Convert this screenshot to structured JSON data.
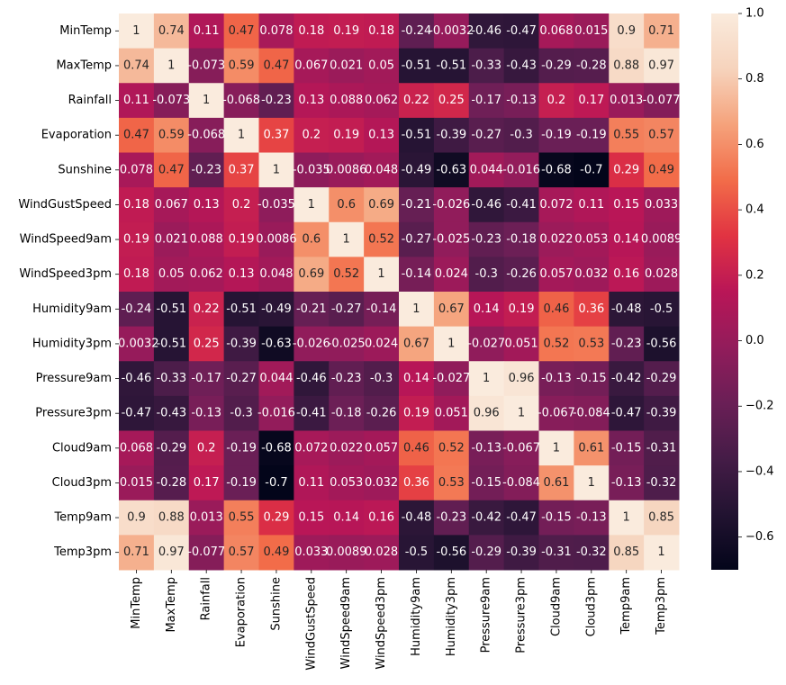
{
  "chart_data": {
    "type": "heatmap",
    "title": "",
    "xlabel": "",
    "ylabel": "",
    "row_labels": [
      "MinTemp",
      "MaxTemp",
      "Rainfall",
      "Evaporation",
      "Sunshine",
      "WindGustSpeed",
      "WindSpeed9am",
      "WindSpeed3pm",
      "Humidity9am",
      "Humidity3pm",
      "Pressure9am",
      "Pressure3pm",
      "Cloud9am",
      "Cloud3pm",
      "Temp9am",
      "Temp3pm"
    ],
    "col_labels": [
      "MinTemp",
      "MaxTemp",
      "Rainfall",
      "Evaporation",
      "Sunshine",
      "WindGustSpeed",
      "WindSpeed9am",
      "WindSpeed3pm",
      "Humidity9am",
      "Humidity3pm",
      "Pressure9am",
      "Pressure3pm",
      "Cloud9am",
      "Cloud3pm",
      "Temp9am",
      "Temp3pm"
    ],
    "values": [
      [
        1,
        0.74,
        0.11,
        0.47,
        0.078,
        0.18,
        0.19,
        0.18,
        -0.24,
        -0.0032,
        -0.46,
        -0.47,
        0.068,
        0.015,
        0.9,
        0.71
      ],
      [
        0.74,
        1,
        -0.073,
        0.59,
        0.47,
        0.067,
        0.021,
        0.05,
        -0.51,
        -0.51,
        -0.33,
        -0.43,
        -0.29,
        -0.28,
        0.88,
        0.97
      ],
      [
        0.11,
        -0.073,
        1,
        -0.068,
        -0.23,
        0.13,
        0.088,
        0.062,
        0.22,
        0.25,
        -0.17,
        -0.13,
        0.2,
        0.17,
        0.013,
        -0.077
      ],
      [
        0.47,
        0.59,
        -0.068,
        1,
        0.37,
        0.2,
        0.19,
        0.13,
        -0.51,
        -0.39,
        -0.27,
        -0.3,
        -0.19,
        -0.19,
        0.55,
        0.57
      ],
      [
        0.078,
        0.47,
        -0.23,
        0.37,
        1,
        -0.035,
        0.0086,
        0.048,
        -0.49,
        -0.63,
        0.044,
        -0.016,
        -0.68,
        -0.7,
        0.29,
        0.49
      ],
      [
        0.18,
        0.067,
        0.13,
        0.2,
        -0.035,
        1,
        0.6,
        0.69,
        -0.21,
        -0.026,
        -0.46,
        -0.41,
        0.072,
        0.11,
        0.15,
        0.033
      ],
      [
        0.19,
        0.021,
        0.088,
        0.19,
        0.0086,
        0.6,
        1,
        0.52,
        -0.27,
        -0.025,
        -0.23,
        -0.18,
        0.022,
        0.053,
        0.14,
        0.0089
      ],
      [
        0.18,
        0.05,
        0.062,
        0.13,
        0.048,
        0.69,
        0.52,
        1,
        -0.14,
        0.024,
        -0.3,
        -0.26,
        0.057,
        0.032,
        0.16,
        0.028
      ],
      [
        -0.24,
        -0.51,
        0.22,
        -0.51,
        -0.49,
        -0.21,
        -0.27,
        -0.14,
        1,
        0.67,
        0.14,
        0.19,
        0.46,
        0.36,
        -0.48,
        -0.5
      ],
      [
        -0.0032,
        -0.51,
        0.25,
        -0.39,
        -0.63,
        -0.026,
        -0.025,
        0.024,
        0.67,
        1,
        -0.027,
        0.051,
        0.52,
        0.53,
        -0.23,
        -0.56
      ],
      [
        -0.46,
        -0.33,
        -0.17,
        -0.27,
        0.044,
        -0.46,
        -0.23,
        -0.3,
        0.14,
        -0.027,
        1,
        0.96,
        -0.13,
        -0.15,
        -0.42,
        -0.29
      ],
      [
        -0.47,
        -0.43,
        -0.13,
        -0.3,
        -0.016,
        -0.41,
        -0.18,
        -0.26,
        0.19,
        0.051,
        0.96,
        1,
        -0.067,
        -0.084,
        -0.47,
        -0.39
      ],
      [
        0.068,
        -0.29,
        0.2,
        -0.19,
        -0.68,
        0.072,
        0.022,
        0.057,
        0.46,
        0.52,
        -0.13,
        -0.067,
        1,
        0.61,
        -0.15,
        -0.31
      ],
      [
        0.015,
        -0.28,
        0.17,
        -0.19,
        -0.7,
        0.11,
        0.053,
        0.032,
        0.36,
        0.53,
        -0.15,
        -0.084,
        0.61,
        1,
        -0.13,
        -0.32
      ],
      [
        0.9,
        0.88,
        0.013,
        0.55,
        0.29,
        0.15,
        0.14,
        0.16,
        -0.48,
        -0.23,
        -0.42,
        -0.47,
        -0.15,
        -0.13,
        1,
        0.85
      ],
      [
        0.71,
        0.97,
        -0.077,
        0.57,
        0.49,
        0.033,
        0.0089,
        0.028,
        -0.5,
        -0.56,
        -0.29,
        -0.39,
        -0.31,
        -0.32,
        0.85,
        1
      ]
    ],
    "value_labels": [
      [
        "1",
        "0.74",
        "0.11",
        "0.47",
        "0.078",
        "0.18",
        "0.19",
        "0.18",
        "-0.24",
        "-0.0032",
        "-0.46",
        "-0.47",
        "0.068",
        "0.015",
        "0.9",
        "0.71"
      ],
      [
        "0.74",
        "1",
        "-0.073",
        "0.59",
        "0.47",
        "0.067",
        "0.021",
        "0.05",
        "-0.51",
        "-0.51",
        "-0.33",
        "-0.43",
        "-0.29",
        "-0.28",
        "0.88",
        "0.97"
      ],
      [
        "0.11",
        "-0.073",
        "1",
        "-0.068",
        "-0.23",
        "0.13",
        "0.088",
        "0.062",
        "0.22",
        "0.25",
        "-0.17",
        "-0.13",
        "0.2",
        "0.17",
        "0.013",
        "-0.077"
      ],
      [
        "0.47",
        "0.59",
        "-0.068",
        "1",
        "0.37",
        "0.2",
        "0.19",
        "0.13",
        "-0.51",
        "-0.39",
        "-0.27",
        "-0.3",
        "-0.19",
        "-0.19",
        "0.55",
        "0.57"
      ],
      [
        "0.078",
        "0.47",
        "-0.23",
        "0.37",
        "1",
        "-0.035",
        "0.0086",
        "0.048",
        "-0.49",
        "-0.63",
        "0.044",
        "-0.016",
        "-0.68",
        "-0.7",
        "0.29",
        "0.49"
      ],
      [
        "0.18",
        "0.067",
        "0.13",
        "0.2",
        "-0.035",
        "1",
        "0.6",
        "0.69",
        "-0.21",
        "-0.026",
        "-0.46",
        "-0.41",
        "0.072",
        "0.11",
        "0.15",
        "0.033"
      ],
      [
        "0.19",
        "0.021",
        "0.088",
        "0.19",
        "0.0086",
        "0.6",
        "1",
        "0.52",
        "-0.27",
        "-0.025",
        "-0.23",
        "-0.18",
        "0.022",
        "0.053",
        "0.14",
        "0.0089"
      ],
      [
        "0.18",
        "0.05",
        "0.062",
        "0.13",
        "0.048",
        "0.69",
        "0.52",
        "1",
        "-0.14",
        "0.024",
        "-0.3",
        "-0.26",
        "0.057",
        "0.032",
        "0.16",
        "0.028"
      ],
      [
        "-0.24",
        "-0.51",
        "0.22",
        "-0.51",
        "-0.49",
        "-0.21",
        "-0.27",
        "-0.14",
        "1",
        "0.67",
        "0.14",
        "0.19",
        "0.46",
        "0.36",
        "-0.48",
        "-0.5"
      ],
      [
        "-0.0032",
        "-0.51",
        "0.25",
        "-0.39",
        "-0.63",
        "-0.026",
        "-0.025",
        "0.024",
        "0.67",
        "1",
        "-0.027",
        "0.051",
        "0.52",
        "0.53",
        "-0.23",
        "-0.56"
      ],
      [
        "-0.46",
        "-0.33",
        "-0.17",
        "-0.27",
        "0.044",
        "-0.46",
        "-0.23",
        "-0.3",
        "0.14",
        "-0.027",
        "1",
        "0.96",
        "-0.13",
        "-0.15",
        "-0.42",
        "-0.29"
      ],
      [
        "-0.47",
        "-0.43",
        "-0.13",
        "-0.3",
        "-0.016",
        "-0.41",
        "-0.18",
        "-0.26",
        "0.19",
        "0.051",
        "0.96",
        "1",
        "-0.067",
        "-0.084",
        "-0.47",
        "-0.39"
      ],
      [
        "0.068",
        "-0.29",
        "0.2",
        "-0.19",
        "-0.68",
        "0.072",
        "0.022",
        "0.057",
        "0.46",
        "0.52",
        "-0.13",
        "-0.067",
        "1",
        "0.61",
        "-0.15",
        "-0.31"
      ],
      [
        "0.015",
        "-0.28",
        "0.17",
        "-0.19",
        "-0.7",
        "0.11",
        "0.053",
        "0.032",
        "0.36",
        "0.53",
        "-0.15",
        "-0.084",
        "0.61",
        "1",
        "-0.13",
        "-0.32"
      ],
      [
        "0.9",
        "0.88",
        "0.013",
        "0.55",
        "0.29",
        "0.15",
        "0.14",
        "0.16",
        "-0.48",
        "-0.23",
        "-0.42",
        "-0.47",
        "-0.15",
        "-0.13",
        "1",
        "0.85"
      ],
      [
        "0.71",
        "0.97",
        "-0.077",
        "0.57",
        "0.49",
        "0.033",
        "0.0089",
        "0.028",
        "-0.5",
        "-0.56",
        "-0.29",
        "-0.39",
        "-0.31",
        "-0.32",
        "0.85",
        "1"
      ]
    ],
    "colorbar": {
      "colormap": "rocket",
      "vmin": -0.7,
      "vmax": 1,
      "ticks": [
        1.0,
        0.8,
        0.6,
        0.4,
        0.2,
        0.0,
        -0.2,
        -0.4,
        -0.6
      ],
      "tick_labels": [
        "1.0",
        "0.8",
        "0.6",
        "0.4",
        "0.2",
        "0.0",
        "−0.2",
        "−0.4",
        "−0.6"
      ]
    },
    "colormap_stops": [
      "#03051a",
      "#221331",
      "#451c47",
      "#6a1f56",
      "#921c5b",
      "#b91657",
      "#e13342",
      "#f26c49",
      "#f5a27b",
      "#f6d3bc",
      "#faebdd"
    ],
    "grid": false,
    "legend": "colorbar-right"
  }
}
